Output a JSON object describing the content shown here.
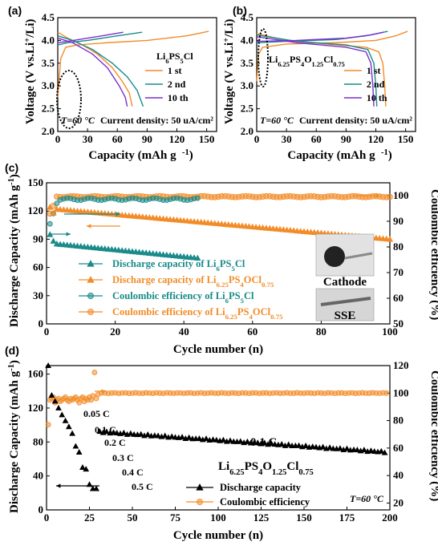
{
  "colors": {
    "orange": "#F28C28",
    "teal": "#1A8A8A",
    "purple": "#7B2FD0",
    "black": "#000000",
    "axis_right": "#F28C28"
  },
  "watermark": "",
  "chart_data": [
    {
      "panel": "(a)",
      "type": "line",
      "xlabel": "Capacity (mAh g⁻¹)",
      "ylabel": "Voltage (V vs.Li⁺/Li)",
      "xlim": [
        0,
        160
      ],
      "ylim": [
        2.0,
        4.5
      ],
      "xticks": [
        "0",
        "30",
        "60",
        "90",
        "120",
        "150"
      ],
      "yticks": [
        "2.0",
        "2.5",
        "3.0",
        "3.5",
        "4.0",
        "4.5"
      ],
      "material_label": "Li6PS5Cl",
      "temperature": "T=60 °C",
      "current_density": "Current density: 50 uA/cm²",
      "series": [
        {
          "name": "1 st",
          "color": "orange",
          "charge": [
            [
              0,
              2.75
            ],
            [
              3,
              3.6
            ],
            [
              8,
              3.85
            ],
            [
              20,
              3.9
            ],
            [
              50,
              3.95
            ],
            [
              90,
              4.0
            ],
            [
              130,
              4.1
            ],
            [
              152,
              4.2
            ]
          ],
          "discharge": [
            [
              0,
              4.18
            ],
            [
              10,
              4.05
            ],
            [
              25,
              3.9
            ],
            [
              40,
              3.7
            ],
            [
              55,
              3.4
            ],
            [
              65,
              3.1
            ],
            [
              72,
              2.85
            ],
            [
              75,
              2.55
            ]
          ]
        },
        {
          "name": "2 nd",
          "color": "teal",
          "charge": [
            [
              0,
              3.9
            ],
            [
              10,
              3.95
            ],
            [
              30,
              4.0
            ],
            [
              60,
              4.1
            ],
            [
              85,
              4.18
            ]
          ],
          "discharge": [
            [
              0,
              4.1
            ],
            [
              15,
              4.0
            ],
            [
              35,
              3.8
            ],
            [
              55,
              3.5
            ],
            [
              70,
              3.2
            ],
            [
              80,
              2.9
            ],
            [
              86,
              2.55
            ]
          ]
        },
        {
          "name": "10 th",
          "color": "purple",
          "charge": [
            [
              0,
              3.95
            ],
            [
              10,
              3.98
            ],
            [
              30,
              4.05
            ],
            [
              50,
              4.12
            ],
            [
              66,
              4.18
            ]
          ],
          "discharge": [
            [
              0,
              4.05
            ],
            [
              15,
              3.95
            ],
            [
              35,
              3.7
            ],
            [
              50,
              3.4
            ],
            [
              62,
              3.0
            ],
            [
              68,
              2.75
            ],
            [
              70,
              2.55
            ]
          ]
        }
      ]
    },
    {
      "panel": "(b)",
      "type": "line",
      "xlabel": "Capacity (mAh g⁻¹)",
      "ylabel": "Voltage (V vs.Li⁺/Li)",
      "xlim": [
        0,
        160
      ],
      "ylim": [
        2.0,
        4.5
      ],
      "xticks": [
        "0",
        "30",
        "60",
        "90",
        "120",
        "150"
      ],
      "yticks": [
        "2.0",
        "2.5",
        "3.0",
        "3.5",
        "4.0",
        "4.5"
      ],
      "material_label": "Li6.25PS4O1.25Cl0.75",
      "temperature": "T=60 °C",
      "current_density": "Current density: 50 uA/cm²",
      "series": [
        {
          "name": "1 st",
          "color": "orange",
          "charge": [
            [
              0,
              3.1
            ],
            [
              2,
              3.7
            ],
            [
              6,
              3.85
            ],
            [
              30,
              3.92
            ],
            [
              80,
              3.95
            ],
            [
              120,
              4.0
            ],
            [
              140,
              4.1
            ],
            [
              152,
              4.2
            ]
          ],
          "discharge": [
            [
              0,
              4.15
            ],
            [
              30,
              4.0
            ],
            [
              70,
              3.92
            ],
            [
              110,
              3.85
            ],
            [
              123,
              3.75
            ],
            [
              127,
              3.5
            ],
            [
              129,
              3.0
            ],
            [
              130,
              2.55
            ]
          ]
        },
        {
          "name": "2 nd",
          "color": "teal",
          "charge": [
            [
              0,
              3.95
            ],
            [
              30,
              3.98
            ],
            [
              80,
              4.02
            ],
            [
              110,
              4.1
            ],
            [
              132,
              4.2
            ]
          ],
          "discharge": [
            [
              0,
              4.12
            ],
            [
              40,
              3.98
            ],
            [
              90,
              3.9
            ],
            [
              112,
              3.8
            ],
            [
              118,
              3.5
            ],
            [
              120,
              3.0
            ],
            [
              121,
              2.55
            ]
          ]
        },
        {
          "name": "10 th",
          "color": "purple",
          "charge": [
            [
              0,
              3.98
            ],
            [
              40,
              4.0
            ],
            [
              90,
              4.05
            ],
            [
              115,
              4.12
            ],
            [
              128,
              4.18
            ]
          ],
          "discharge": [
            [
              0,
              4.08
            ],
            [
              40,
              3.95
            ],
            [
              90,
              3.85
            ],
            [
              110,
              3.75
            ],
            [
              115,
              3.5
            ],
            [
              117,
              3.0
            ],
            [
              118,
              2.55
            ]
          ]
        }
      ]
    },
    {
      "panel": "(c)",
      "type": "scatter",
      "xlabel": "Cycle number (n)",
      "ylabel": "Discharge Capacity (mAh g⁻¹)",
      "y2label": "Coulombic efficiency (%)",
      "xlim": [
        0,
        100
      ],
      "ylim": [
        0,
        150
      ],
      "y2lim": [
        50,
        105
      ],
      "xticks": [
        "0",
        "20",
        "40",
        "60",
        "80",
        "100"
      ],
      "yticks": [
        "0",
        "30",
        "60",
        "90",
        "120",
        "150"
      ],
      "y2ticks": [
        "50",
        "60",
        "70",
        "80",
        "90",
        "100"
      ],
      "legend": [
        {
          "label": "Discharge capacity of Li6PS5Cl",
          "color": "teal",
          "marker": "triangle"
        },
        {
          "label": "Discharge capacity of Li6.25PS4OCl0.75",
          "color": "orange",
          "marker": "triangle"
        },
        {
          "label": "Coulombic efficiency of Li6PS5Cl",
          "color": "teal",
          "marker": "circle"
        },
        {
          "label": "Coulombic efficiency of Li6.25PS4OCl0.75",
          "color": "orange",
          "marker": "circle"
        }
      ],
      "inset_labels": [
        "Cathode",
        "SSE"
      ],
      "series": [
        {
          "name": "Discharge capacity of Li6PS5Cl",
          "color": "teal",
          "axis": "left",
          "marker": "triangle",
          "x_start": 1,
          "x_end": 44,
          "y_start": 95,
          "y_end": 70
        },
        {
          "name": "Discharge capacity of Li6.25PS4OCl0.75",
          "color": "orange",
          "axis": "left",
          "marker": "triangle",
          "x_start": 1,
          "x_end": 100,
          "y_start": 130,
          "y_end": 90
        },
        {
          "name": "Coulombic efficiency of Li6PS5Cl",
          "color": "teal",
          "axis": "right",
          "marker": "circle",
          "x_start": 1,
          "x_end": 44,
          "y_start": 85,
          "y_end": 99
        },
        {
          "name": "Coulombic efficiency of Li6.25PS4OCl0.75",
          "color": "orange",
          "axis": "right",
          "marker": "circle",
          "x_start": 1,
          "x_end": 100,
          "y_start": 90,
          "y_end": 100
        }
      ]
    },
    {
      "panel": "(d)",
      "type": "scatter",
      "xlabel": "Cycle number (n)",
      "ylabel": "Discharge Capacity (mAh g⁻¹)",
      "y2label": "Coulombic efficiency (%)",
      "xlim": [
        0,
        200
      ],
      "ylim": [
        0,
        170
      ],
      "y2lim": [
        15,
        120
      ],
      "xticks": [
        "0",
        "25",
        "50",
        "75",
        "100",
        "125",
        "150",
        "175",
        "200"
      ],
      "yticks": [
        "0",
        "40",
        "80",
        "120",
        "160"
      ],
      "y2ticks": [
        "20",
        "40",
        "60",
        "80",
        "100",
        "120"
      ],
      "material_label": "Li6.25PS4O1.25Cl0.75",
      "temperature": "T=60 °C",
      "rate_labels": [
        "0.05 C",
        "0.1 C",
        "0.2 C",
        "0.3 C",
        "0.4 C",
        "0.5 C",
        "0.1 C"
      ],
      "legend": [
        {
          "label": "Discharge capacity",
          "color": "black",
          "marker": "triangle"
        },
        {
          "label": "Coulombic efficiency",
          "color": "orange",
          "marker": "circle"
        }
      ],
      "series": [
        {
          "name": "Discharge capacity",
          "color": "black",
          "axis": "left",
          "marker": "triangle",
          "rate_steps": [
            [
              1,
              170
            ],
            [
              3,
              135
            ],
            [
              5,
              128
            ],
            [
              7,
              120
            ],
            [
              9,
              112
            ],
            [
              11,
              105
            ],
            [
              13,
              98
            ],
            [
              15,
              90
            ],
            [
              17,
              75
            ],
            [
              19,
              68
            ],
            [
              21,
              50
            ],
            [
              23,
              48
            ],
            [
              25,
              30
            ],
            [
              27,
              25
            ],
            [
              29,
              25
            ],
            [
              31,
              92
            ],
            [
              200,
              68
            ]
          ]
        },
        {
          "name": "Coulombic efficiency",
          "color": "orange",
          "axis": "right",
          "marker": "circle",
          "values_summary": "≈100% except early cycles (77–100%) with spike near cycle 29"
        }
      ]
    }
  ]
}
